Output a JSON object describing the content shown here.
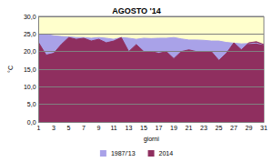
{
  "chart_data": {
    "type": "area",
    "title": "AGOSTO '14",
    "x_label": "giorni",
    "y_label": "°C",
    "categories": [
      1,
      null,
      3,
      null,
      5,
      null,
      7,
      null,
      9,
      null,
      11,
      null,
      13,
      null,
      15,
      null,
      17,
      null,
      19,
      null,
      21,
      null,
      23,
      null,
      25,
      null,
      27,
      null,
      29,
      null,
      31
    ],
    "series": [
      {
        "name": "1987/'13",
        "color": "#a9a2e8",
        "values": [
          24.8,
          24.9,
          24.5,
          24.3,
          24.2,
          24.0,
          24.0,
          23.8,
          24.0,
          23.8,
          23.5,
          24.0,
          23.8,
          23.5,
          23.8,
          23.7,
          23.8,
          23.8,
          24.0,
          23.6,
          23.3,
          23.3,
          23.2,
          23.0,
          23.0,
          22.6,
          22.4,
          22.2,
          22.3,
          22.4,
          22.0
        ]
      },
      {
        "name": "2014",
        "color": "#8f2f5f",
        "values": [
          22.5,
          19.0,
          19.5,
          22.0,
          24.0,
          23.5,
          23.8,
          23.0,
          23.5,
          22.5,
          23.0,
          24.0,
          20.0,
          22.0,
          20.0,
          20.0,
          19.5,
          20.0,
          18.0,
          20.0,
          20.5,
          20.0,
          20.0,
          20.0,
          17.5,
          19.5,
          22.5,
          20.5,
          22.5,
          22.8,
          22.0
        ]
      }
    ],
    "ylim": [
      0,
      30
    ],
    "yticks": [
      {
        "value": 0,
        "label": "0,0"
      },
      {
        "value": 5,
        "label": "5,0"
      },
      {
        "value": 10,
        "label": "10,0"
      },
      {
        "value": 15,
        "label": "15,0"
      },
      {
        "value": 20,
        "label": "20,0"
      },
      {
        "value": 25,
        "label": "25,0"
      },
      {
        "value": 30,
        "label": "30,0"
      }
    ],
    "grid": true,
    "legend": "bottom"
  }
}
